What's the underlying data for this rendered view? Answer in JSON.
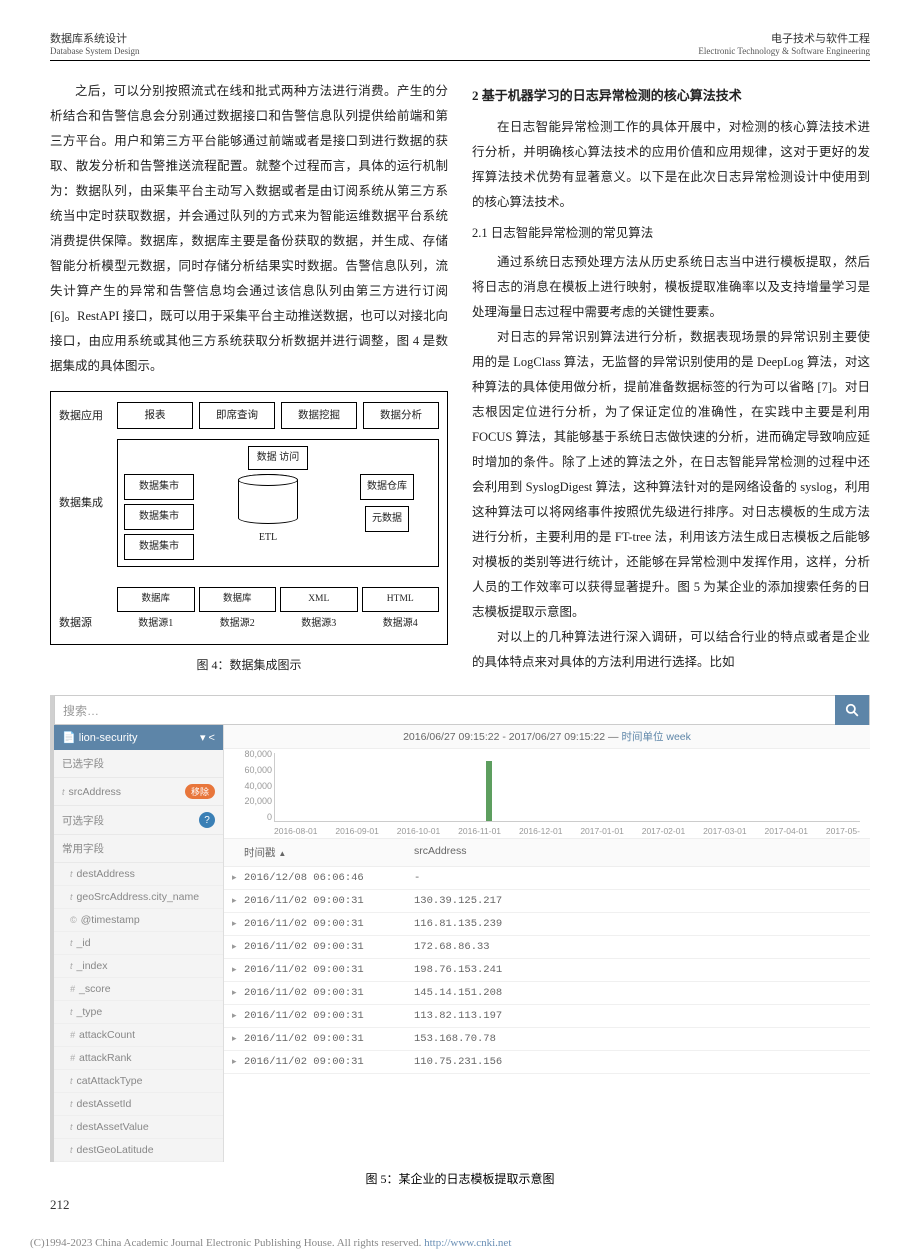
{
  "header": {
    "left_cn": "数据库系统设计",
    "left_en": "Database System Design",
    "right_cn": "电子技术与软件工程",
    "right_en": "Electronic Technology & Software Engineering"
  },
  "leftCol": {
    "p1": "之后，可以分别按照流式在线和批式两种方法进行消费。产生的分析结合和告警信息会分别通过数据接口和告警信息队列提供给前端和第三方平台。用户和第三方平台能够通过前端或者是接口到进行数据的获取、散发分析和告警推送流程配置。就整个过程而言，具体的运行机制为：数据队列，由采集平台主动写入数据或者是由订阅系统从第三方系统当中定时获取数据，并会通过队列的方式来为智能运维数据平台系统消费提供保障。数据库，数据库主要是备份获取的数据，并生成、存储智能分析模型元数据，同时存储分析结果实时数据。告警信息队列，流失计算产生的异常和告警信息均会通过该信息队列由第三方进行订阅 [6]。RestAPI 接口，既可以用于采集平台主动推送数据，也可以对接北向接口，由应用系统或其他三方系统获取分析数据并进行调整，图 4 是数据集成的具体图示。"
  },
  "figure4": {
    "row_app_label": "数据应用",
    "row_app_boxes": [
      "报表",
      "即席查询",
      "数据挖掘",
      "数据分析"
    ],
    "access_label": "数据\n访问",
    "integration_label": "数据集成",
    "marts": [
      "数据集市",
      "数据集市",
      "数据集市"
    ],
    "warehouse": "数据仓库",
    "meta": "元数据",
    "etl": "ETL",
    "source_label": "数据源",
    "sources": [
      "数据库",
      "数据库",
      "XML",
      "HTML"
    ],
    "source_nums": [
      "数据源1",
      "数据源2",
      "数据源3",
      "数据源4"
    ],
    "caption": "图 4：数据集成图示"
  },
  "rightCol": {
    "h2": "2 基于机器学习的日志异常检测的核心算法技术",
    "p1": "在日志智能异常检测工作的具体开展中，对检测的核心算法技术进行分析，并明确核心算法技术的应用价值和应用规律，这对于更好的发挥算法技术优势有显著意义。以下是在此次日志异常检测设计中使用到的核心算法技术。",
    "h21": "2.1 日志智能异常检测的常见算法",
    "p2": "通过系统日志预处理方法从历史系统日志当中进行模板提取，然后将日志的消息在模板上进行映射，模板提取准确率以及支持增量学习是处理海量日志过程中需要考虑的关键性要素。",
    "p3": "对日志的异常识别算法进行分析，数据表现场景的异常识别主要使用的是 LogClass 算法，无监督的异常识别使用的是 DeepLog 算法，对这种算法的具体使用做分析，提前准备数据标签的行为可以省略 [7]。对日志根因定位进行分析，为了保证定位的准确性，在实践中主要是利用 FOCUS 算法，其能够基于系统日志做快速的分析，进而确定导致响应延时增加的条件。除了上述的算法之外，在日志智能异常检测的过程中还会利用到 SyslogDigest 算法，这种算法针对的是网络设备的 syslog，利用这种算法可以将网络事件按照优先级进行排序。对日志模板的生成方法进行分析，主要利用的是 FT-tree 法，利用该方法生成日志模板之后能够对模板的类别等进行统计，还能够在异常检测中发挥作用，这样，分析人员的工作效率可以获得显著提升。图 5 为某企业的添加搜索任务的日志模板提取示意图。",
    "p4": "对以上的几种算法进行深入调研，可以结合行业的特点或者是企业的具体特点来对具体的方法利用进行选择。比如"
  },
  "figure5": {
    "search_placeholder": "搜索…",
    "sidebar_title": "lion-security",
    "selected_fields_label": "已选字段",
    "selected_field": "srcAddress",
    "selected_badge": "移除",
    "optional_fields_label": "可选字段",
    "optional_badge": "?",
    "common_fields_label": "常用字段",
    "fields": [
      {
        "t": "t",
        "name": "destAddress"
      },
      {
        "t": "t",
        "name": "geoSrcAddress.city_name"
      },
      {
        "t": "©",
        "name": "@timestamp"
      },
      {
        "t": "t",
        "name": "_id"
      },
      {
        "t": "t",
        "name": "_index"
      },
      {
        "t": "#",
        "name": "_score"
      },
      {
        "t": "t",
        "name": "_type"
      },
      {
        "t": "#",
        "name": "attackCount"
      },
      {
        "t": "#",
        "name": "attackRank"
      },
      {
        "t": "t",
        "name": "catAttackType"
      },
      {
        "t": "t",
        "name": "destAssetId"
      },
      {
        "t": "t",
        "name": "destAssetValue"
      },
      {
        "t": "t",
        "name": "destGeoLatitude"
      }
    ],
    "time_range": "2016/06/27 09:15:22 - 2017/06/27 09:15:22 — ",
    "time_unit_link": "时间单位 week",
    "yaxis": [
      "80,000",
      "60,000",
      "40,000",
      "20,000",
      "0"
    ],
    "xaxis": [
      "2016-08-01",
      "2016-09-01",
      "2016-10-01",
      "2016-11-01",
      "2016-12-01",
      "2017-01-01",
      "2017-02-01",
      "2017-03-01",
      "2017-04-01",
      "2017-05-"
    ],
    "bar": {
      "position_pct": 36,
      "height_pct": 88,
      "color": "#5d9e5f"
    },
    "th_time": "时间戳",
    "th_src": "srcAddress",
    "rows": [
      {
        "time": "2016/12/08 06:06:46",
        "src": "-"
      },
      {
        "time": "2016/11/02 09:00:31",
        "src": "130.39.125.217"
      },
      {
        "time": "2016/11/02 09:00:31",
        "src": "116.81.135.239"
      },
      {
        "time": "2016/11/02 09:00:31",
        "src": "172.68.86.33"
      },
      {
        "time": "2016/11/02 09:00:31",
        "src": "198.76.153.241"
      },
      {
        "time": "2016/11/02 09:00:31",
        "src": "145.14.151.208"
      },
      {
        "time": "2016/11/02 09:00:31",
        "src": "113.82.113.197"
      },
      {
        "time": "2016/11/02 09:00:31",
        "src": "153.168.70.78"
      },
      {
        "time": "2016/11/02 09:00:31",
        "src": "110.75.231.156"
      }
    ],
    "caption": "图 5：某企业的日志模板提取示意图"
  },
  "page_number": "212",
  "footer": {
    "text": "(C)1994-2023 China Academic Journal Electronic Publishing House. All rights reserved.    ",
    "link": "http://www.cnki.net"
  },
  "colors": {
    "header_blue": "#5d85a8",
    "badge_orange": "#e8763b",
    "bar_green": "#5d9e5f"
  }
}
